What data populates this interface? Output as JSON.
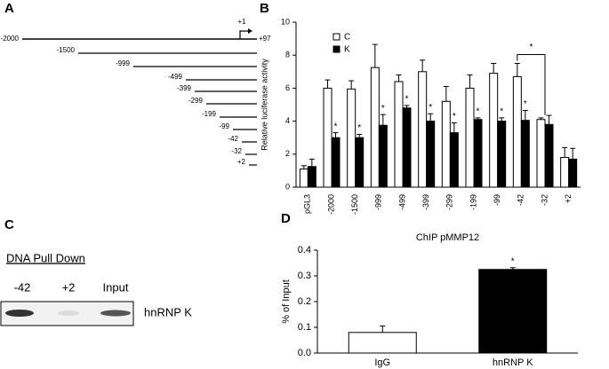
{
  "panel_labels": [
    "A",
    "B",
    "C",
    "D"
  ],
  "constructs": {
    "labels": [
      "-2000",
      "-1500",
      "-999",
      "-499",
      "-399",
      "-299",
      "-199",
      "-99",
      "-42",
      "-32",
      "+2"
    ],
    "tss_label": "+1",
    "end_label": "+97"
  },
  "pull_down": {
    "title": "DNA Pull Down",
    "lanes": [
      "-42",
      "+2",
      "Input"
    ],
    "band_label": "hnRNP K"
  },
  "chart_data": [
    {
      "type": "bar",
      "ylabel": "Relative luciferase activity",
      "categories": [
        "pGL3",
        "-2000",
        "-1500",
        "-999",
        "-499",
        "-399",
        "-299",
        "-199",
        "-99",
        "-42",
        "-32",
        "+2"
      ],
      "series": [
        {
          "name": "C",
          "color": "#ffffff",
          "values": [
            1.1,
            6.0,
            5.95,
            7.25,
            6.4,
            7.0,
            5.2,
            6.0,
            6.9,
            6.7,
            4.1,
            1.8
          ],
          "errors": [
            0.2,
            0.5,
            0.5,
            1.4,
            0.4,
            0.7,
            0.9,
            0.8,
            0.6,
            0.8,
            0.1,
            0.6
          ]
        },
        {
          "name": "K",
          "color": "#000000",
          "values": [
            1.25,
            3.0,
            3.0,
            3.75,
            4.8,
            4.0,
            3.3,
            4.1,
            4.0,
            4.05,
            3.8,
            1.7
          ],
          "errors": [
            0.45,
            0.3,
            0.2,
            0.65,
            0.15,
            0.45,
            0.6,
            0.1,
            0.2,
            0.6,
            0.55,
            0.65
          ]
        }
      ],
      "annotations": [
        {
          "text": "*",
          "category": "-2000"
        },
        {
          "text": "*",
          "category": "-1500"
        },
        {
          "text": "*",
          "category": "-999"
        },
        {
          "text": "*",
          "category": "-499"
        },
        {
          "text": "*",
          "category": "-399"
        },
        {
          "text": "*",
          "category": "-299"
        },
        {
          "text": "*",
          "category": "-199"
        },
        {
          "text": "*",
          "category": "-99"
        },
        {
          "text": "*",
          "category": "-42"
        },
        {
          "text": "*",
          "between": [
            "-42",
            "-32"
          ]
        }
      ],
      "ylim": [
        0,
        10
      ],
      "yticks": [
        0,
        2,
        4,
        6,
        8,
        10
      ],
      "legend": "top-left"
    },
    {
      "type": "bar",
      "title": "ChIP pMMP12",
      "ylabel": "% of Input",
      "categories": [
        "IgG",
        "hnRNP K"
      ],
      "values": [
        0.08,
        0.325
      ],
      "errors": [
        0.025,
        0.007
      ],
      "color": "#000000",
      "colors": [
        "#ffffff",
        "#000000"
      ],
      "annotations": [
        {
          "text": "*",
          "category": "hnRNP K"
        }
      ],
      "ylim": [
        0,
        0.4
      ],
      "yticks": [
        {
          "value": 0,
          "label": "0.0"
        },
        0.1,
        0.2,
        0.3,
        0.4
      ]
    }
  ]
}
